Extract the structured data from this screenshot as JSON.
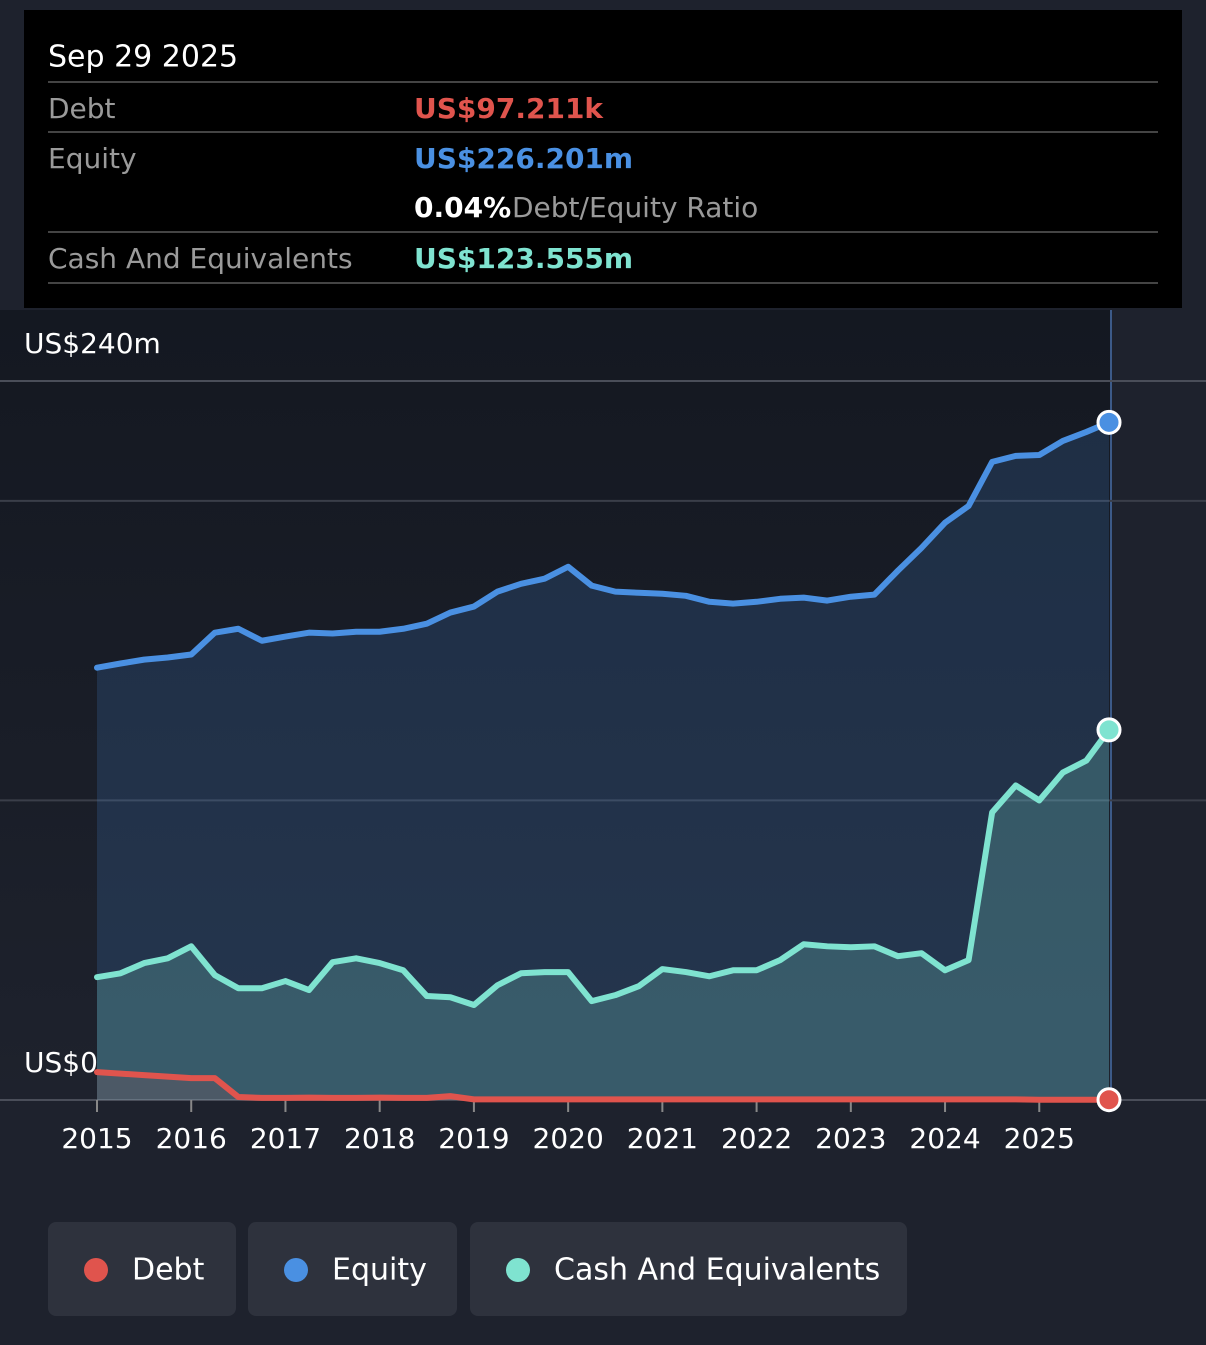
{
  "chart_data": {
    "type": "line",
    "tooltip": {
      "date": "Sep 29 2025",
      "debt_value": "US$97.211k",
      "equity_value": "US$226.201m",
      "ratio_value": "0.04%",
      "ratio_label": "Debt/Equity Ratio",
      "cash_value": "US$123.555m"
    },
    "x": [
      2015,
      2015.25,
      2015.5,
      2015.75,
      2016,
      2016.25,
      2016.5,
      2016.75,
      2017,
      2017.25,
      2017.5,
      2017.75,
      2018,
      2018.25,
      2018.5,
      2018.75,
      2019,
      2019.25,
      2019.5,
      2019.75,
      2020,
      2020.25,
      2020.5,
      2020.75,
      2021,
      2021.25,
      2021.5,
      2021.75,
      2022,
      2022.25,
      2022.5,
      2022.75,
      2023,
      2023.25,
      2023.5,
      2023.75,
      2024,
      2024.25,
      2024.5,
      2024.75,
      2025,
      2025.25,
      2025.5,
      2025.74
    ],
    "xlim": [
      2015,
      2025.74
    ],
    "xticks": [
      2015,
      2016,
      2017,
      2018,
      2019,
      2020,
      2021,
      2022,
      2023,
      2024,
      2025
    ],
    "ylim": [
      0,
      240
    ],
    "yticks": [
      {
        "value": 0,
        "label": "US$0"
      },
      {
        "value": 240,
        "label": "US$240m"
      }
    ],
    "grid_values": [
      100,
      200
    ],
    "series": [
      {
        "name": "Debt",
        "color": "#e0544d",
        "values": [
          9.3,
          8.8,
          8.3,
          7.8,
          7.3,
          7.3,
          1,
          0.7,
          0.7,
          0.8,
          0.7,
          0.7,
          0.8,
          0.7,
          0.7,
          1.3,
          0.2,
          0.2,
          0.2,
          0.2,
          0.2,
          0.2,
          0.2,
          0.2,
          0.2,
          0.2,
          0.2,
          0.2,
          0.2,
          0.2,
          0.2,
          0.2,
          0.2,
          0.2,
          0.2,
          0.2,
          0.2,
          0.2,
          0.2,
          0.2,
          0.1,
          0.1,
          0.1,
          0.097211
        ]
      },
      {
        "name": "Equity",
        "color": "#4a90e2",
        "values": [
          144.3,
          145.7,
          147,
          147.7,
          148.7,
          156,
          157.3,
          153.3,
          154.7,
          156,
          155.7,
          156.3,
          156.3,
          157.3,
          159,
          162.7,
          164.7,
          169.7,
          172.3,
          174,
          178,
          171.7,
          169.7,
          169.3,
          169,
          168.3,
          166.3,
          165.7,
          166.3,
          167.3,
          167.7,
          166.7,
          168,
          168.7,
          176.7,
          184.3,
          192.7,
          198.3,
          213,
          215,
          215.3,
          220,
          223,
          226.201
        ]
      },
      {
        "name": "Cash And Equivalents",
        "color": "#7fe3d0",
        "values": [
          41,
          42.3,
          45.7,
          47.3,
          51.3,
          41.7,
          37.3,
          37.3,
          39.7,
          36.7,
          46,
          47.3,
          45.7,
          43.3,
          34.7,
          34.3,
          31.7,
          38.3,
          42.3,
          42.7,
          42.7,
          33,
          35,
          38,
          43.7,
          42.7,
          41.3,
          43.3,
          43.3,
          46.7,
          52,
          51.3,
          51,
          51.3,
          48,
          49,
          43.3,
          46.7,
          96,
          105,
          100,
          109.3,
          113.3,
          123.555
        ]
      }
    ]
  }
}
